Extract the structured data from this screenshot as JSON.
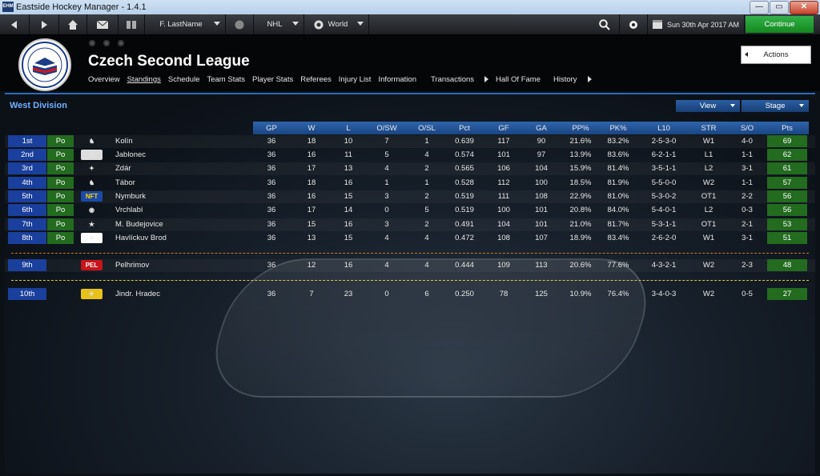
{
  "window": {
    "title": "Eastside Hockey Manager - 1.4.1",
    "icon_label": "EHM"
  },
  "topbar": {
    "manager": "F. LastName",
    "league": "NHL",
    "region": "World",
    "date": "Sun 30th Apr 2017 AM",
    "continue": "Continue"
  },
  "header": {
    "league_name": "Czech Second League",
    "tabs": [
      "Overview",
      "Standings",
      "Schedule",
      "Team Stats",
      "Player Stats",
      "Referees",
      "Injury List",
      "Information",
      "Transactions",
      "Hall Of Fame",
      "History"
    ],
    "active_tab": "Standings",
    "actions": "Actions"
  },
  "standings": {
    "division": "West Division",
    "view_label": "View",
    "stage_label": "Stage",
    "columns": [
      "GP",
      "W",
      "L",
      "O/SW",
      "O/SL",
      "Pct",
      "GF",
      "GA",
      "PP%",
      "PK%",
      "L10",
      "STR",
      "S/O",
      "Pts"
    ],
    "rows": [
      {
        "pos": "1st",
        "po": "Po",
        "team": "Kolín",
        "gp": "36",
        "w": "18",
        "l": "10",
        "osw": "7",
        "osl": "1",
        "pct": "0.639",
        "gf": "117",
        "ga": "90",
        "pp": "21.6%",
        "pk": "83.2%",
        "l10": "2-5-3-0",
        "str": "W1",
        "so": "4-0",
        "pts": "69"
      },
      {
        "pos": "2nd",
        "po": "Po",
        "team": "Jablonec",
        "gp": "36",
        "w": "16",
        "l": "11",
        "osw": "5",
        "osl": "4",
        "pct": "0.574",
        "gf": "101",
        "ga": "97",
        "pp": "13.9%",
        "pk": "83.6%",
        "l10": "6-2-1-1",
        "str": "L1",
        "so": "1-1",
        "pts": "62"
      },
      {
        "pos": "3rd",
        "po": "Po",
        "team": "Zdár",
        "gp": "36",
        "w": "17",
        "l": "13",
        "osw": "4",
        "osl": "2",
        "pct": "0.565",
        "gf": "106",
        "ga": "104",
        "pp": "15.9%",
        "pk": "81.4%",
        "l10": "3-5-1-1",
        "str": "L2",
        "so": "3-1",
        "pts": "61"
      },
      {
        "pos": "4th",
        "po": "Po",
        "team": "Tábor",
        "gp": "36",
        "w": "18",
        "l": "16",
        "osw": "1",
        "osl": "1",
        "pct": "0.528",
        "gf": "112",
        "ga": "100",
        "pp": "18.5%",
        "pk": "81.9%",
        "l10": "5-5-0-0",
        "str": "W2",
        "so": "1-1",
        "pts": "57"
      },
      {
        "pos": "5th",
        "po": "Po",
        "team": "Nymburk",
        "gp": "36",
        "w": "16",
        "l": "15",
        "osw": "3",
        "osl": "2",
        "pct": "0.519",
        "gf": "111",
        "ga": "108",
        "pp": "22.9%",
        "pk": "81.0%",
        "l10": "5-3-0-2",
        "str": "OT1",
        "so": "2-2",
        "pts": "56"
      },
      {
        "pos": "6th",
        "po": "Po",
        "team": "Vrchlabí",
        "gp": "36",
        "w": "17",
        "l": "14",
        "osw": "0",
        "osl": "5",
        "pct": "0.519",
        "gf": "100",
        "ga": "101",
        "pp": "20.8%",
        "pk": "84.0%",
        "l10": "5-4-0-1",
        "str": "L2",
        "so": "0-3",
        "pts": "56"
      },
      {
        "pos": "7th",
        "po": "Po",
        "team": "M. Budejovice",
        "gp": "36",
        "w": "15",
        "l": "16",
        "osw": "3",
        "osl": "2",
        "pct": "0.491",
        "gf": "104",
        "ga": "101",
        "pp": "21.0%",
        "pk": "81.7%",
        "l10": "5-3-1-1",
        "str": "OT1",
        "so": "2-1",
        "pts": "53"
      },
      {
        "pos": "8th",
        "po": "Po",
        "team": "Havlíckuv Brod",
        "gp": "36",
        "w": "13",
        "l": "15",
        "osw": "4",
        "osl": "4",
        "pct": "0.472",
        "gf": "108",
        "ga": "107",
        "pp": "18.9%",
        "pk": "83.4%",
        "l10": "2-6-2-0",
        "str": "W1",
        "so": "3-1",
        "pts": "51"
      },
      {
        "pos": "9th",
        "po": "",
        "team": "Pelhrimov",
        "gp": "36",
        "w": "12",
        "l": "16",
        "osw": "4",
        "osl": "4",
        "pct": "0.444",
        "gf": "109",
        "ga": "113",
        "pp": "20.6%",
        "pk": "77.6%",
        "l10": "4-3-2-1",
        "str": "W2",
        "so": "2-3",
        "pts": "48",
        "logo_text": "PEL"
      },
      {
        "pos": "10th",
        "po": "",
        "team": "Jindr. Hradec",
        "gp": "36",
        "w": "7",
        "l": "23",
        "osw": "0",
        "osl": "6",
        "pct": "0.250",
        "gf": "78",
        "ga": "125",
        "pp": "10.9%",
        "pk": "76.4%",
        "l10": "3-4-0-3",
        "str": "W2",
        "so": "0-5",
        "pts": "27"
      }
    ]
  },
  "colors": {
    "accent": "#2c6ab8",
    "playoff": "#236b1f",
    "position": "#1a3f9c",
    "continue": "#1f9a2e"
  }
}
